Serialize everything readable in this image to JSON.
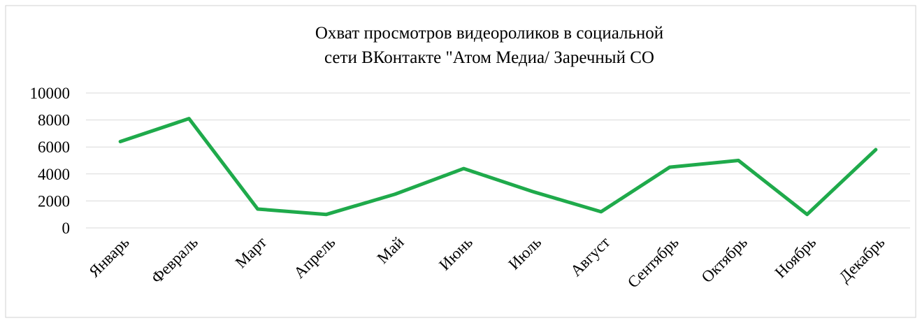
{
  "chart_data": {
    "type": "line",
    "title": [
      "Охват просмотров видеороликов в социальной",
      "сети ВКонтакте \"Атом Медиа/ Заречный СО"
    ],
    "categories": [
      "Январь",
      "Февраль",
      "Март",
      "Апрель",
      "Май",
      "Июнь",
      "Июль",
      "Август",
      "Сентябрь",
      "Октябрь",
      "Ноябрь",
      "Декабрь"
    ],
    "series": [
      {
        "color": "#1faa4b",
        "values": [
          6400,
          8100,
          1400,
          1000,
          2500,
          4400,
          2700,
          1200,
          4500,
          5000,
          1000,
          5800
        ]
      }
    ],
    "ylim": [
      0,
      10000
    ],
    "yticks": [
      0,
      2000,
      4000,
      6000,
      8000,
      10000
    ],
    "grid": true
  }
}
